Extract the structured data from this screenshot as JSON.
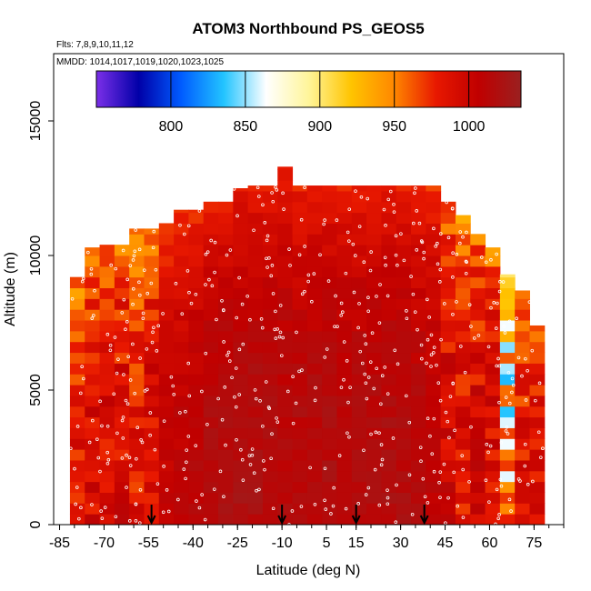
{
  "chart_data": {
    "type": "heatmap",
    "title": "ATOM3 Northbound PS_GEOS5",
    "subtitle_flights": "Flts: 7,8,9,10,11,12",
    "subtitle_dates": "MMDD: 1014,1017,1019,1020,1023,1025",
    "xlabel": "Latitude (deg N)",
    "ylabel": "Altitude (m)",
    "xlim": [
      -87,
      85
    ],
    "ylim": [
      0,
      17500
    ],
    "x_ticks": [
      -85,
      -70,
      -55,
      -40,
      -25,
      -10,
      5,
      15,
      30,
      45,
      60,
      75
    ],
    "x_tick_labels": [
      "-85",
      "-70",
      "-55",
      "-40",
      "-25",
      "-10",
      "5",
      "15",
      "30",
      "45",
      "60",
      "75"
    ],
    "y_ticks": [
      0,
      5000,
      10000,
      15000
    ],
    "y_tick_labels": [
      "0",
      "5000",
      "10000",
      "15000"
    ],
    "colorbar": {
      "range": [
        750,
        1035
      ],
      "ticks": [
        800,
        850,
        900,
        950,
        1000
      ],
      "tick_labels": [
        "800",
        "850",
        "900",
        "950",
        "1000"
      ],
      "colors": [
        "#7b2fe8",
        "#0000a8",
        "#005cff",
        "#22c4ff",
        "#ffffff",
        "#fff59a",
        "#ffc400",
        "#ff8800",
        "#e81800",
        "#c00000",
        "#9a2020"
      ]
    },
    "arrow_latitudes": [
      -54,
      -10,
      15,
      38
    ],
    "columns": [
      {
        "lat": -79,
        "top": 9200,
        "value": 985
      },
      {
        "lat": -74,
        "top": 10300,
        "value": 990
      },
      {
        "lat": -69,
        "top": 10400,
        "value": 992
      },
      {
        "lat": -64,
        "top": 10400,
        "value": 993
      },
      {
        "lat": -59,
        "top": 11000,
        "value": 985
      },
      {
        "lat": -54,
        "top": 11000,
        "value": 995
      },
      {
        "lat": -49,
        "top": 11200,
        "value": 1004
      },
      {
        "lat": -44,
        "top": 11700,
        "value": 1008
      },
      {
        "lat": -39,
        "top": 11700,
        "value": 1012
      },
      {
        "lat": -34,
        "top": 12000,
        "value": 1016
      },
      {
        "lat": -29,
        "top": 12000,
        "value": 1018
      },
      {
        "lat": -24,
        "top": 12500,
        "value": 1020
      },
      {
        "lat": -19,
        "top": 12600,
        "value": 1019
      },
      {
        "lat": -14,
        "top": 12600,
        "value": 1018
      },
      {
        "lat": -9,
        "top": 13300,
        "value": 1016
      },
      {
        "lat": -4,
        "top": 12600,
        "value": 1016
      },
      {
        "lat": 1,
        "top": 12600,
        "value": 1017
      },
      {
        "lat": 6,
        "top": 12600,
        "value": 1018
      },
      {
        "lat": 11,
        "top": 12600,
        "value": 1016
      },
      {
        "lat": 16,
        "top": 12600,
        "value": 1016
      },
      {
        "lat": 21,
        "top": 12600,
        "value": 1017
      },
      {
        "lat": 26,
        "top": 12600,
        "value": 1018
      },
      {
        "lat": 31,
        "top": 12600,
        "value": 1017
      },
      {
        "lat": 36,
        "top": 12600,
        "value": 1014
      },
      {
        "lat": 41,
        "top": 12600,
        "value": 1010
      },
      {
        "lat": 46,
        "top": 12000,
        "value": 996
      },
      {
        "lat": 51,
        "top": 11500,
        "value": 988
      },
      {
        "lat": 56,
        "top": 10800,
        "value": 995
      },
      {
        "lat": 61,
        "top": 10300,
        "value": 993
      },
      {
        "lat": 66,
        "top": 9300,
        "value": 960
      },
      {
        "lat": 71,
        "top": 8700,
        "value": 985
      },
      {
        "lat": 76,
        "top": 7400,
        "value": 990
      }
    ]
  }
}
